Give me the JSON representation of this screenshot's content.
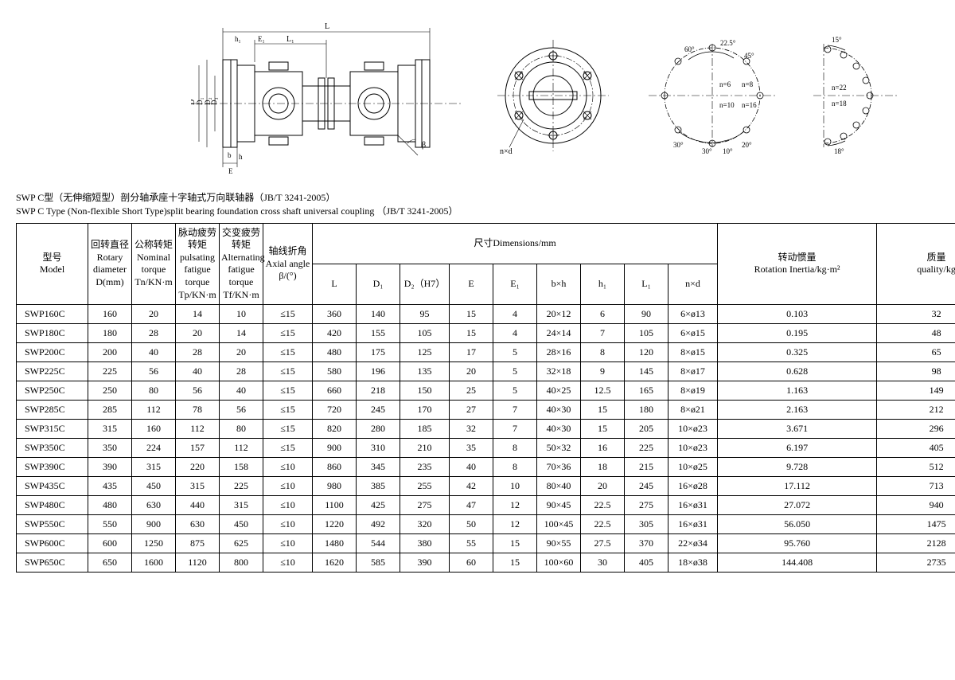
{
  "caption_cn": "SWP C型（无伸缩短型）剖分轴承座十字轴式万向联轴器（JB/T 3241-2005）",
  "caption_en": "SWP C Type (Non-flexible Short Type)split bearing foundation cross shaft universal coupling （JB/T 3241-2005）",
  "headers": {
    "model": "型号\nModel",
    "rotary": "回转直径\nRotary\ndiameter\nD(mm)",
    "nominal": "公称转矩\nNominal\ntorque\nTn/KN·m",
    "pulsating": "脉动疲劳转矩\npulsating\nfatigue\ntorque\nTp/KN·m",
    "alternating": "交变疲劳转矩\nAlternating\nfatigue\ntorque\nTf/KN·m",
    "axial": "轴线折角\nAxial angle\nβ/(°)",
    "dimensions": "尺寸Dimensions/mm",
    "L": "L",
    "D1": "D₁",
    "D2": "D₂（H7）",
    "E": "E",
    "E1": "E₁",
    "bxh": "b×h",
    "h1": "h₁",
    "L1": "L₁",
    "nxd": "n×d",
    "inertia": "转动惯量\nRotation Inertia/kg·m²",
    "quality": "质量\nquality/kg"
  },
  "rows": [
    {
      "model": "SWP160C",
      "D": "160",
      "Tn": "20",
      "Tp": "14",
      "Tf": "10",
      "angle": "≤15",
      "L": "360",
      "D1": "140",
      "D2": "95",
      "E": "15",
      "E1": "4",
      "bxh": "20×12",
      "h1": "6",
      "L1": "90",
      "nxd": "6×ø13",
      "inertia": "0.103",
      "quality": "32"
    },
    {
      "model": "SWP180C",
      "D": "180",
      "Tn": "28",
      "Tp": "20",
      "Tf": "14",
      "angle": "≤15",
      "L": "420",
      "D1": "155",
      "D2": "105",
      "E": "15",
      "E1": "4",
      "bxh": "24×14",
      "h1": "7",
      "L1": "105",
      "nxd": "6×ø15",
      "inertia": "0.195",
      "quality": "48"
    },
    {
      "model": "SWP200C",
      "D": "200",
      "Tn": "40",
      "Tp": "28",
      "Tf": "20",
      "angle": "≤15",
      "L": "480",
      "D1": "175",
      "D2": "125",
      "E": "17",
      "E1": "5",
      "bxh": "28×16",
      "h1": "8",
      "L1": "120",
      "nxd": "8×ø15",
      "inertia": "0.325",
      "quality": "65"
    },
    {
      "model": "SWP225C",
      "D": "225",
      "Tn": "56",
      "Tp": "40",
      "Tf": "28",
      "angle": "≤15",
      "L": "580",
      "D1": "196",
      "D2": "135",
      "E": "20",
      "E1": "5",
      "bxh": "32×18",
      "h1": "9",
      "L1": "145",
      "nxd": "8×ø17",
      "inertia": "0.628",
      "quality": "98"
    },
    {
      "model": "SWP250C",
      "D": "250",
      "Tn": "80",
      "Tp": "56",
      "Tf": "40",
      "angle": "≤15",
      "L": "660",
      "D1": "218",
      "D2": "150",
      "E": "25",
      "E1": "5",
      "bxh": "40×25",
      "h1": "12.5",
      "L1": "165",
      "nxd": "8×ø19",
      "inertia": "1.163",
      "quality": "149"
    },
    {
      "model": "SWP285C",
      "D": "285",
      "Tn": "112",
      "Tp": "78",
      "Tf": "56",
      "angle": "≤15",
      "L": "720",
      "D1": "245",
      "D2": "170",
      "E": "27",
      "E1": "7",
      "bxh": "40×30",
      "h1": "15",
      "L1": "180",
      "nxd": "8×ø21",
      "inertia": "2.163",
      "quality": "212"
    },
    {
      "model": "SWP315C",
      "D": "315",
      "Tn": "160",
      "Tp": "112",
      "Tf": "80",
      "angle": "≤15",
      "L": "820",
      "D1": "280",
      "D2": "185",
      "E": "32",
      "E1": "7",
      "bxh": "40×30",
      "h1": "15",
      "L1": "205",
      "nxd": "10×ø23",
      "inertia": "3.671",
      "quality": "296"
    },
    {
      "model": "SWP350C",
      "D": "350",
      "Tn": "224",
      "Tp": "157",
      "Tf": "112",
      "angle": "≤15",
      "L": "900",
      "D1": "310",
      "D2": "210",
      "E": "35",
      "E1": "8",
      "bxh": "50×32",
      "h1": "16",
      "L1": "225",
      "nxd": "10×ø23",
      "inertia": "6.197",
      "quality": "405"
    },
    {
      "model": "SWP390C",
      "D": "390",
      "Tn": "315",
      "Tp": "220",
      "Tf": "158",
      "angle": "≤10",
      "L": "860",
      "D1": "345",
      "D2": "235",
      "E": "40",
      "E1": "8",
      "bxh": "70×36",
      "h1": "18",
      "L1": "215",
      "nxd": "10×ø25",
      "inertia": "9.728",
      "quality": "512"
    },
    {
      "model": "SWP435C",
      "D": "435",
      "Tn": "450",
      "Tp": "315",
      "Tf": "225",
      "angle": "≤10",
      "L": "980",
      "D1": "385",
      "D2": "255",
      "E": "42",
      "E1": "10",
      "bxh": "80×40",
      "h1": "20",
      "L1": "245",
      "nxd": "16×ø28",
      "inertia": "17.112",
      "quality": "713"
    },
    {
      "model": "SWP480C",
      "D": "480",
      "Tn": "630",
      "Tp": "440",
      "Tf": "315",
      "angle": "≤10",
      "L": "1100",
      "D1": "425",
      "D2": "275",
      "E": "47",
      "E1": "12",
      "bxh": "90×45",
      "h1": "22.5",
      "L1": "275",
      "nxd": "16×ø31",
      "inertia": "27.072",
      "quality": "940"
    },
    {
      "model": "SWP550C",
      "D": "550",
      "Tn": "900",
      "Tp": "630",
      "Tf": "450",
      "angle": "≤10",
      "L": "1220",
      "D1": "492",
      "D2": "320",
      "E": "50",
      "E1": "12",
      "bxh": "100×45",
      "h1": "22.5",
      "L1": "305",
      "nxd": "16×ø31",
      "inertia": "56.050",
      "quality": "1475"
    },
    {
      "model": "SWP600C",
      "D": "600",
      "Tn": "1250",
      "Tp": "875",
      "Tf": "625",
      "angle": "≤10",
      "L": "1480",
      "D1": "544",
      "D2": "380",
      "E": "55",
      "E1": "15",
      "bxh": "90×55",
      "h1": "27.5",
      "L1": "370",
      "nxd": "22×ø34",
      "inertia": "95.760",
      "quality": "2128"
    },
    {
      "model": "SWP650C",
      "D": "650",
      "Tn": "1600",
      "Tp": "1120",
      "Tf": "800",
      "angle": "≤10",
      "L": "1620",
      "D1": "585",
      "D2": "390",
      "E": "60",
      "E1": "15",
      "bxh": "100×60",
      "h1": "30",
      "L1": "405",
      "nxd": "18×ø38",
      "inertia": "144.408",
      "quality": "2735"
    }
  ],
  "diagram": {
    "stroke": "#000000",
    "stroke_width": 1,
    "thin_stroke_width": 0.6,
    "hatch_color": "#000000",
    "font_size": 10,
    "labels": {
      "L": "L",
      "L1": "L₁",
      "E": "E",
      "E1": "E₁",
      "b": "b",
      "h": "h",
      "h1": "h₁",
      "D": "D",
      "D1": "D₁",
      "D2": "D₂",
      "D3": "D₃",
      "nd": "n×d",
      "beta": "β"
    },
    "bolt_angles": {
      "a1": "60°",
      "a2": "22.5°",
      "a3": "45°",
      "a4": "30°",
      "a5": "30°",
      "a6": "10°",
      "a7": "20°",
      "a8": "15°",
      "a9": "18°"
    },
    "bolt_counts": {
      "n6": "n=6",
      "n8": "n=8",
      "n10": "n=10",
      "n16": "n=16",
      "n22": "n=22",
      "n18": "n=18"
    }
  }
}
